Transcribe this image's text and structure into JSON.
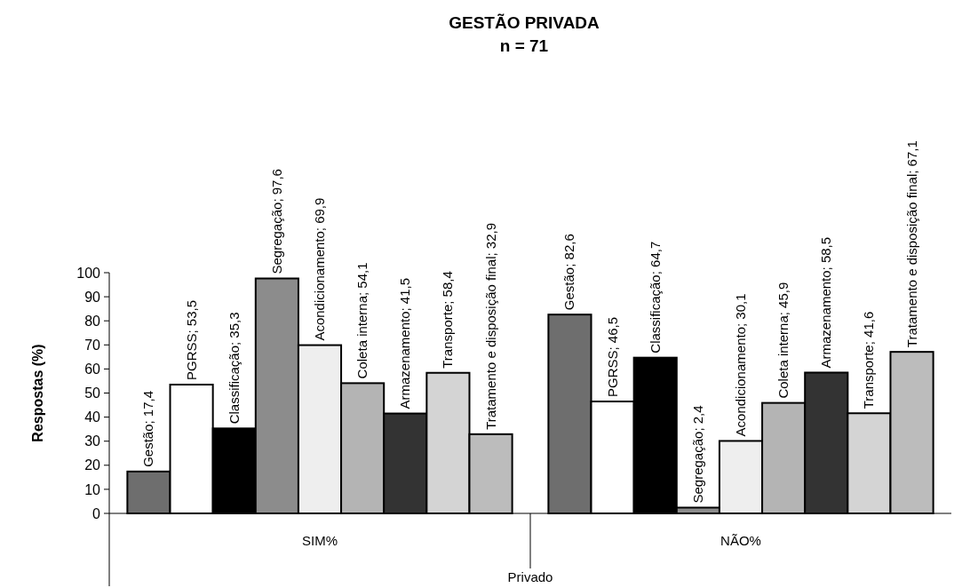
{
  "chart_data": {
    "type": "bar",
    "title": "GESTÃO PRIVADA",
    "subtitle": "n = 71",
    "xlabel": "Privado",
    "ylabel": "Respostas (%)",
    "categories": [
      "SIM%",
      "NÃO%"
    ],
    "series": [
      {
        "color": "#6e6e6e",
        "values": [
          17.4,
          82.6
        ],
        "value_labels": [
          "Gestão; 17,4",
          "Gestão; 82,6"
        ]
      },
      {
        "color": "#ffffff",
        "values": [
          53.5,
          46.5
        ],
        "value_labels": [
          "PGRSS; 53,5",
          "PGRSS; 46,5"
        ]
      },
      {
        "color": "#000000",
        "values": [
          35.3,
          64.7
        ],
        "value_labels": [
          "Classificação; 35,3",
          "Classificação; 64,7"
        ]
      },
      {
        "color": "#8c8c8c",
        "values": [
          97.6,
          2.4
        ],
        "value_labels": [
          "Segregação; 97,6",
          "Segregação; 2,4"
        ]
      },
      {
        "color": "#eeeeee",
        "values": [
          69.9,
          30.1
        ],
        "value_labels": [
          "Acondicionamento; 69,9",
          "Acondicionamento; 30,1"
        ]
      },
      {
        "color": "#b4b4b4",
        "values": [
          54.1,
          45.9
        ],
        "value_labels": [
          "Coleta interna; 54,1",
          "Coleta interna; 45,9"
        ]
      },
      {
        "color": "#333333",
        "values": [
          41.5,
          58.5
        ],
        "value_labels": [
          "Armazenamento; 41,5",
          "Armazenamento; 58,5"
        ]
      },
      {
        "color": "#d4d4d4",
        "values": [
          58.4,
          41.6
        ],
        "value_labels": [
          "Transporte; 58,4",
          "Transporte; 41,6"
        ]
      },
      {
        "color": "#bcbcbc",
        "values": [
          32.9,
          67.1
        ],
        "value_labels": [
          "Tratamento e disposição final; 32,9",
          "Tratamento e disposição final; 67,1"
        ]
      }
    ],
    "ylim": [
      0,
      100
    ],
    "yticks": [
      0,
      10,
      20,
      30,
      40,
      50,
      60,
      70,
      80,
      90,
      100
    ]
  }
}
